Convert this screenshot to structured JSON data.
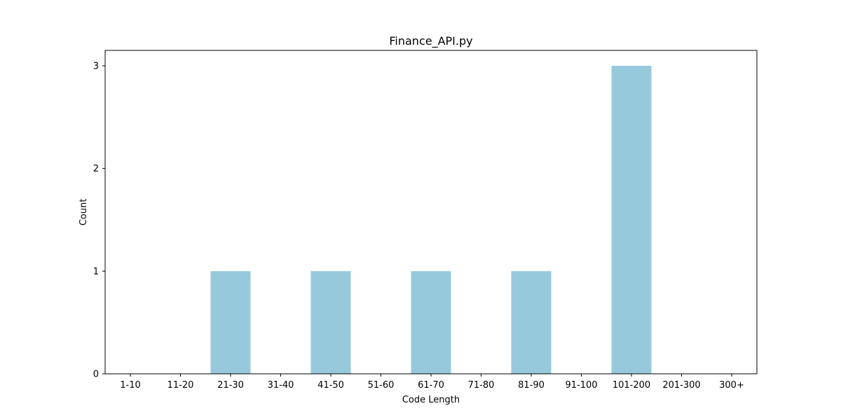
{
  "chart_data": {
    "type": "bar",
    "title": "Finance_API.py",
    "xlabel": "Code Length",
    "ylabel": "Count",
    "categories": [
      "1-10",
      "11-20",
      "21-30",
      "31-40",
      "41-50",
      "51-60",
      "61-70",
      "71-80",
      "81-90",
      "91-100",
      "101-200",
      "201-300",
      "300+"
    ],
    "values": [
      0,
      0,
      1,
      0,
      1,
      0,
      1,
      0,
      1,
      0,
      3,
      0,
      0
    ],
    "ylim": [
      0,
      3.15
    ],
    "yticks": [
      0,
      1,
      2,
      3
    ],
    "grid": false,
    "legend": "none",
    "bar_color": "#96c9dc"
  }
}
